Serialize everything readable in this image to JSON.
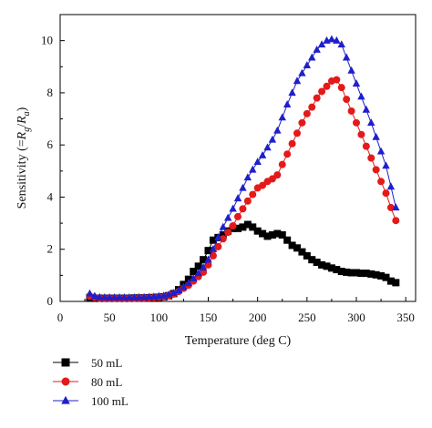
{
  "chart_data": {
    "type": "line",
    "xlabel": "Temperature (deg C)",
    "ylabel": {
      "prefix": "Sensitivity (=",
      "num_main": "R",
      "num_sub": "g",
      "sep": "/",
      "den_main": "R",
      "den_sub": "a",
      "suffix": ")"
    },
    "xlim": [
      0,
      360
    ],
    "ylim": [
      0,
      11
    ],
    "x_ticks": [
      0,
      50,
      100,
      150,
      200,
      250,
      300,
      350
    ],
    "y_ticks": [
      0,
      2,
      4,
      6,
      8,
      10
    ],
    "x_tick_labels": [
      "0",
      "50",
      "100",
      "150",
      "200",
      "250",
      "300",
      "350"
    ],
    "y_tick_labels": [
      "0",
      "2",
      "4",
      "6",
      "8",
      "10"
    ],
    "legend_position": "bottom-left, below plot",
    "series": [
      {
        "name": "50 mL",
        "color": "#000000",
        "marker": "square",
        "x": [
          30,
          35,
          40,
          45,
          50,
          55,
          60,
          65,
          70,
          75,
          80,
          85,
          90,
          95,
          100,
          105,
          110,
          115,
          120,
          125,
          130,
          135,
          140,
          145,
          150,
          155,
          160,
          165,
          170,
          175,
          180,
          185,
          190,
          195,
          200,
          205,
          210,
          215,
          220,
          225,
          230,
          235,
          240,
          245,
          250,
          255,
          260,
          265,
          270,
          275,
          280,
          285,
          290,
          295,
          300,
          305,
          310,
          315,
          320,
          325,
          330,
          335,
          340
        ],
        "y": [
          0.15,
          0.12,
          0.12,
          0.12,
          0.12,
          0.12,
          0.12,
          0.12,
          0.12,
          0.13,
          0.13,
          0.13,
          0.14,
          0.15,
          0.16,
          0.18,
          0.22,
          0.3,
          0.45,
          0.65,
          0.85,
          1.15,
          1.35,
          1.6,
          1.95,
          2.35,
          2.45,
          2.55,
          2.7,
          2.8,
          2.8,
          2.85,
          2.95,
          2.85,
          2.7,
          2.6,
          2.5,
          2.55,
          2.6,
          2.55,
          2.35,
          2.15,
          2.05,
          1.9,
          1.75,
          1.6,
          1.5,
          1.4,
          1.35,
          1.28,
          1.22,
          1.15,
          1.12,
          1.1,
          1.1,
          1.08,
          1.08,
          1.05,
          1.02,
          0.98,
          0.92,
          0.78,
          0.72
        ]
      },
      {
        "name": "80 mL",
        "color": "#e41a1a",
        "marker": "circle",
        "x": [
          30,
          35,
          40,
          45,
          50,
          55,
          60,
          65,
          70,
          75,
          80,
          85,
          90,
          95,
          100,
          105,
          110,
          115,
          120,
          125,
          130,
          135,
          140,
          145,
          150,
          155,
          160,
          165,
          170,
          175,
          180,
          185,
          190,
          195,
          200,
          205,
          210,
          215,
          220,
          225,
          230,
          235,
          240,
          245,
          250,
          255,
          260,
          265,
          270,
          275,
          280,
          285,
          290,
          295,
          300,
          305,
          310,
          315,
          320,
          325,
          330,
          335,
          340
        ],
        "y": [
          0.2,
          0.15,
          0.12,
          0.12,
          0.12,
          0.12,
          0.12,
          0.12,
          0.12,
          0.12,
          0.13,
          0.13,
          0.14,
          0.15,
          0.16,
          0.18,
          0.22,
          0.28,
          0.38,
          0.5,
          0.62,
          0.78,
          0.95,
          1.12,
          1.4,
          1.75,
          2.1,
          2.4,
          2.65,
          2.9,
          3.25,
          3.55,
          3.85,
          4.1,
          4.35,
          4.45,
          4.6,
          4.7,
          4.85,
          5.25,
          5.65,
          6.05,
          6.45,
          6.85,
          7.2,
          7.45,
          7.8,
          8.05,
          8.25,
          8.45,
          8.5,
          8.2,
          7.75,
          7.3,
          6.85,
          6.4,
          5.95,
          5.5,
          5.05,
          4.6,
          4.15,
          3.6,
          3.1
        ]
      },
      {
        "name": "100 mL",
        "color": "#1f1fcc",
        "marker": "triangle",
        "x": [
          30,
          35,
          40,
          45,
          50,
          55,
          60,
          65,
          70,
          75,
          80,
          85,
          90,
          95,
          100,
          105,
          110,
          115,
          120,
          125,
          130,
          135,
          140,
          145,
          150,
          155,
          160,
          165,
          170,
          175,
          180,
          185,
          190,
          195,
          200,
          205,
          210,
          215,
          220,
          225,
          230,
          235,
          240,
          245,
          250,
          255,
          260,
          265,
          270,
          275,
          280,
          285,
          290,
          295,
          300,
          305,
          310,
          315,
          320,
          325,
          330,
          335,
          340
        ],
        "y": [
          0.3,
          0.2,
          0.16,
          0.15,
          0.15,
          0.15,
          0.15,
          0.15,
          0.15,
          0.15,
          0.16,
          0.16,
          0.17,
          0.18,
          0.2,
          0.22,
          0.26,
          0.32,
          0.42,
          0.55,
          0.7,
          0.88,
          1.08,
          1.3,
          1.6,
          2.0,
          2.45,
          2.85,
          3.2,
          3.55,
          3.95,
          4.35,
          4.75,
          5.05,
          5.35,
          5.6,
          5.9,
          6.2,
          6.55,
          7.05,
          7.55,
          8.0,
          8.45,
          8.75,
          9.05,
          9.35,
          9.65,
          9.85,
          10.0,
          10.05,
          10.0,
          9.85,
          9.35,
          8.85,
          8.35,
          7.85,
          7.35,
          6.85,
          6.3,
          5.75,
          5.2,
          4.4,
          3.6
        ]
      }
    ]
  }
}
